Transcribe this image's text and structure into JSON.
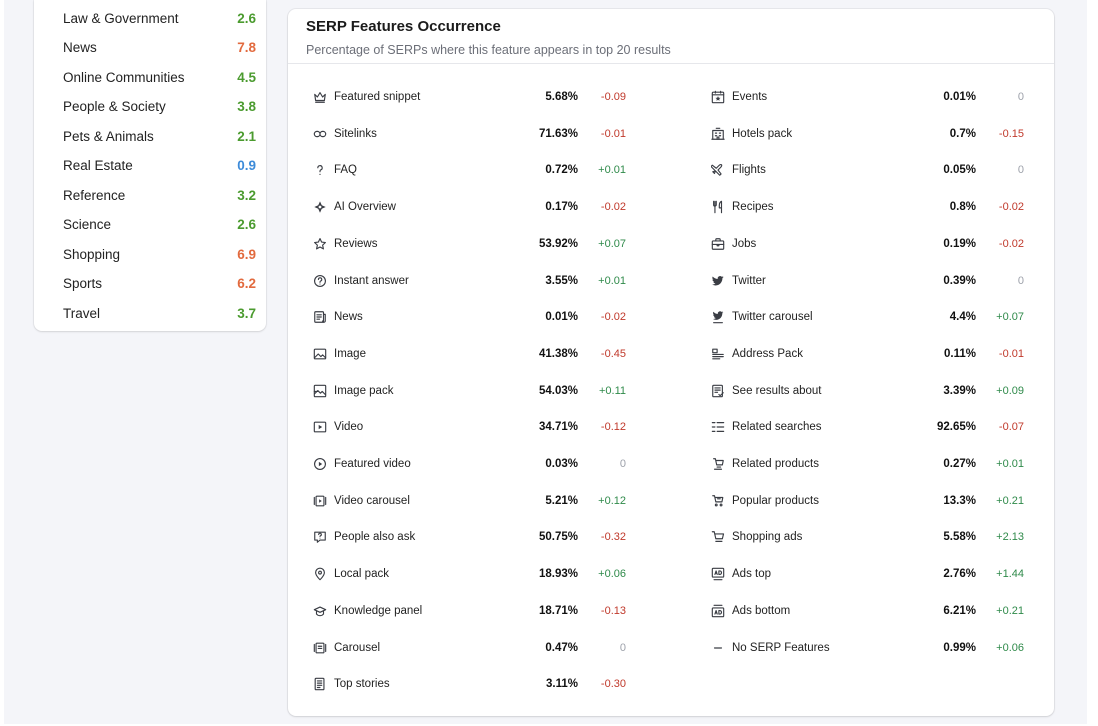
{
  "categories": [
    {
      "name": "Law & Government",
      "value": "2.6",
      "color": "#4b9b2f"
    },
    {
      "name": "News",
      "value": "7.8",
      "color": "#e26a3e"
    },
    {
      "name": "Online Communities",
      "value": "4.5",
      "color": "#4b9b2f"
    },
    {
      "name": "People & Society",
      "value": "3.8",
      "color": "#4b9b2f"
    },
    {
      "name": "Pets & Animals",
      "value": "2.1",
      "color": "#4b9b2f"
    },
    {
      "name": "Real Estate",
      "value": "0.9",
      "color": "#3d8bd9"
    },
    {
      "name": "Reference",
      "value": "3.2",
      "color": "#4b9b2f"
    },
    {
      "name": "Science",
      "value": "2.6",
      "color": "#4b9b2f"
    },
    {
      "name": "Shopping",
      "value": "6.9",
      "color": "#e26a3e"
    },
    {
      "name": "Sports",
      "value": "6.2",
      "color": "#e26a3e"
    },
    {
      "name": "Travel",
      "value": "3.7",
      "color": "#4b9b2f"
    }
  ],
  "serp": {
    "title": "SERP Features Occurrence",
    "subtitle": "Percentage of SERPs where this feature appears in top 20 results",
    "left": [
      {
        "icon": "crown-icon",
        "name": "Featured snippet",
        "value": "5.68%",
        "delta": "-0.09"
      },
      {
        "icon": "link-icon",
        "name": "Sitelinks",
        "value": "71.63%",
        "delta": "-0.01"
      },
      {
        "icon": "question-icon",
        "name": "FAQ",
        "value": "0.72%",
        "delta": "+0.01"
      },
      {
        "icon": "ai-overview-icon",
        "name": "AI Overview",
        "value": "0.17%",
        "delta": "-0.02"
      },
      {
        "icon": "star-icon",
        "name": "Reviews",
        "value": "53.92%",
        "delta": "+0.07"
      },
      {
        "icon": "question-circle-icon",
        "name": "Instant answer",
        "value": "3.55%",
        "delta": "+0.01"
      },
      {
        "icon": "news-icon",
        "name": "News",
        "value": "0.01%",
        "delta": "-0.02"
      },
      {
        "icon": "image-icon",
        "name": "Image",
        "value": "41.38%",
        "delta": "-0.45"
      },
      {
        "icon": "image-pack-icon",
        "name": "Image pack",
        "value": "54.03%",
        "delta": "+0.11"
      },
      {
        "icon": "video-icon",
        "name": "Video",
        "value": "34.71%",
        "delta": "-0.12"
      },
      {
        "icon": "play-circle-icon",
        "name": "Featured video",
        "value": "0.03%",
        "delta": "0"
      },
      {
        "icon": "video-carousel-icon",
        "name": "Video carousel",
        "value": "5.21%",
        "delta": "+0.12"
      },
      {
        "icon": "people-ask-icon",
        "name": "People also ask",
        "value": "50.75%",
        "delta": "-0.32"
      },
      {
        "icon": "map-pin-icon",
        "name": "Local pack",
        "value": "18.93%",
        "delta": "+0.06"
      },
      {
        "icon": "graduation-cap-icon",
        "name": "Knowledge panel",
        "value": "18.71%",
        "delta": "-0.13"
      },
      {
        "icon": "carousel-icon",
        "name": "Carousel",
        "value": "0.47%",
        "delta": "0"
      },
      {
        "icon": "top-stories-icon",
        "name": "Top stories",
        "value": "3.11%",
        "delta": "-0.30"
      }
    ],
    "right": [
      {
        "icon": "calendar-star-icon",
        "name": "Events",
        "value": "0.01%",
        "delta": "0"
      },
      {
        "icon": "hotel-icon",
        "name": "Hotels pack",
        "value": "0.7%",
        "delta": "-0.15"
      },
      {
        "icon": "plane-icon",
        "name": "Flights",
        "value": "0.05%",
        "delta": "0"
      },
      {
        "icon": "fork-knife-icon",
        "name": "Recipes",
        "value": "0.8%",
        "delta": "-0.02"
      },
      {
        "icon": "briefcase-icon",
        "name": "Jobs",
        "value": "0.19%",
        "delta": "-0.02"
      },
      {
        "icon": "twitter-icon",
        "name": "Twitter",
        "value": "0.39%",
        "delta": "0"
      },
      {
        "icon": "twitter-carousel-icon",
        "name": "Twitter carousel",
        "value": "4.4%",
        "delta": "+0.07"
      },
      {
        "icon": "address-pack-icon",
        "name": "Address Pack",
        "value": "0.11%",
        "delta": "-0.01"
      },
      {
        "icon": "see-results-icon",
        "name": "See results about",
        "value": "3.39%",
        "delta": "+0.09"
      },
      {
        "icon": "list-icon",
        "name": "Related searches",
        "value": "92.65%",
        "delta": "-0.07"
      },
      {
        "icon": "related-products-icon",
        "name": "Related products",
        "value": "0.27%",
        "delta": "+0.01"
      },
      {
        "icon": "popular-products-icon",
        "name": "Popular products",
        "value": "13.3%",
        "delta": "+0.21"
      },
      {
        "icon": "cart-icon",
        "name": "Shopping ads",
        "value": "5.58%",
        "delta": "+2.13"
      },
      {
        "icon": "ads-top-icon",
        "name": "Ads top",
        "value": "2.76%",
        "delta": "+1.44"
      },
      {
        "icon": "ads-bottom-icon",
        "name": "Ads bottom",
        "value": "6.21%",
        "delta": "+0.21"
      },
      {
        "icon": "minus-icon",
        "name": "No SERP Features",
        "value": "0.99%",
        "delta": "+0.06"
      }
    ]
  }
}
